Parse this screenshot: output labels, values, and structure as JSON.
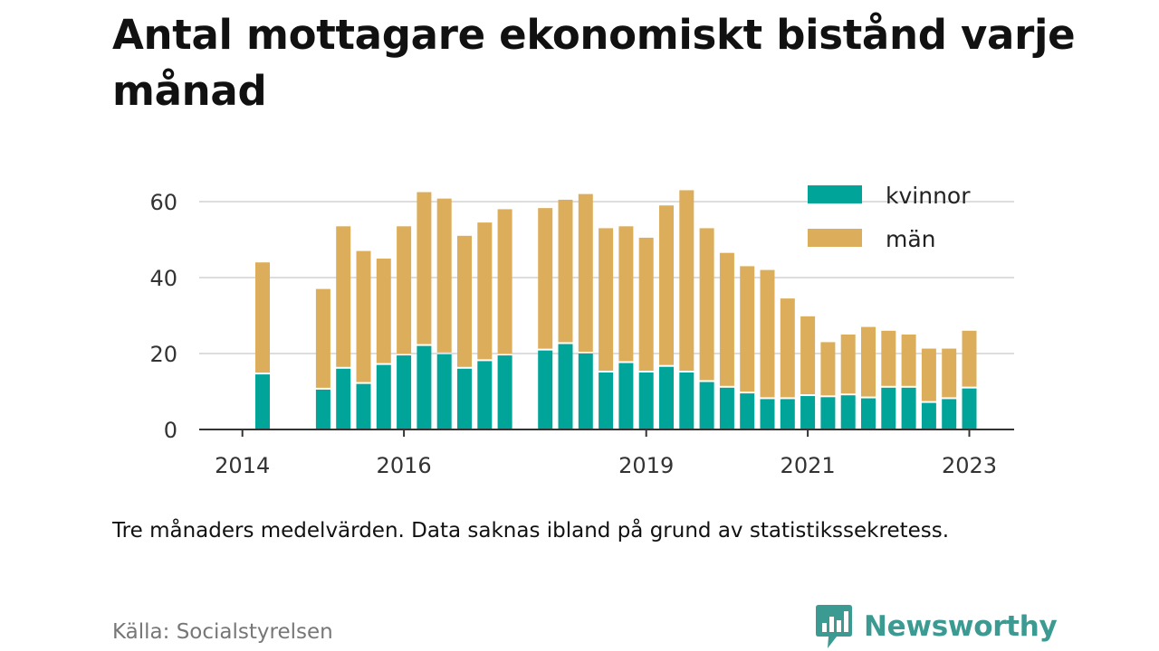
{
  "title": "Antal mottagare ekonomiskt bistånd varje månad",
  "note": "Tre månaders medelvärden. Data saknas ibland på grund av statistikssekretess.",
  "source": "Källa: Socialstyrelsen",
  "brand": {
    "name": "Newsworthy",
    "logo_icon": "bar-chart-badge-icon",
    "color": "#3b9a92"
  },
  "colors": {
    "kvinnor": "#00a499",
    "man": "#dcae5b",
    "grid": "#dddddd",
    "axis": "#333333"
  },
  "chart_data": {
    "type": "bar",
    "stacked": true,
    "x_unit": "quarter",
    "x": [
      "2014-Q2",
      "2014-Q3",
      "2014-Q4",
      "2015-Q1",
      "2015-Q2",
      "2015-Q3",
      "2015-Q4",
      "2016-Q1",
      "2016-Q2",
      "2016-Q3",
      "2016-Q4",
      "2017-Q1",
      "2017-Q2",
      "2017-Q3",
      "2017-Q4",
      "2018-Q1",
      "2018-Q2",
      "2018-Q3",
      "2018-Q4",
      "2019-Q1",
      "2019-Q2",
      "2019-Q3",
      "2019-Q4",
      "2020-Q1",
      "2020-Q2",
      "2020-Q3",
      "2020-Q4",
      "2021-Q1",
      "2021-Q2",
      "2021-Q3",
      "2021-Q4",
      "2022-Q1",
      "2022-Q2",
      "2022-Q3",
      "2022-Q4",
      "2023-Q1"
    ],
    "series": [
      {
        "name": "kvinnor",
        "values": [
          14.5,
          null,
          null,
          10.5,
          16,
          12,
          17,
          19.5,
          22,
          19.8,
          16,
          18,
          19.5,
          null,
          20.8,
          22.5,
          20,
          15,
          17.5,
          15,
          16.5,
          15,
          12.5,
          11,
          9.5,
          8,
          8,
          8.8,
          8.5,
          9,
          8.2,
          11,
          11,
          7,
          8,
          10.8
        ]
      },
      {
        "name": "män",
        "values": [
          29.5,
          null,
          null,
          26.5,
          37.5,
          35,
          28,
          34,
          40.5,
          41,
          35,
          36.5,
          38.5,
          null,
          37.5,
          38,
          42,
          38,
          36,
          35.5,
          42.5,
          48,
          40.5,
          35.5,
          33.5,
          34,
          26.5,
          21,
          14.5,
          16,
          18.8,
          15,
          14,
          14.3,
          13.3,
          15.2
        ]
      }
    ],
    "yticks": [
      0,
      20,
      40,
      60
    ],
    "ylim": [
      0,
      66
    ],
    "xticks": [
      {
        "x": "2014-Q1",
        "label": "2014"
      },
      {
        "x": "2016-Q1",
        "label": "2016"
      },
      {
        "x": "2019-Q1",
        "label": "2019"
      },
      {
        "x": "2021-Q1",
        "label": "2021"
      },
      {
        "x": "2023-Q1",
        "label": "2023"
      }
    ],
    "grid": "horizontal",
    "legend": "top-right"
  }
}
